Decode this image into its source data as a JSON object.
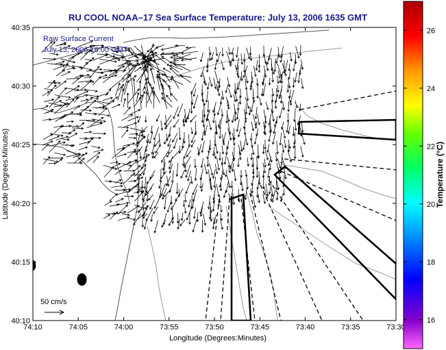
{
  "chart_data": {
    "type": "vector-field-map",
    "title": "RU COOL  NOAA–17  Sea Surface Temperature:  July 13, 2006 1635 GMT",
    "inset_lines": [
      "Raw Surface Current",
      "July 13, 2006 16:00 GMT"
    ],
    "xlabel": "Longitude (Degrees:Minutes)",
    "ylabel": "Latitude (Degrees:Minutes)",
    "x_ticks": [
      "74:10",
      "74:05",
      "74:00",
      "73:55",
      "73:50",
      "73:45",
      "73:40",
      "73:35",
      "73:30"
    ],
    "y_ticks": [
      "40:35",
      "40:30",
      "40:25",
      "40:20",
      "40:15",
      "40:10"
    ],
    "xlim_minutes_west": [
      10,
      30
    ],
    "ylim_minutes_north": [
      10,
      35
    ],
    "colorbar": {
      "label": "Temperature (°C)",
      "ticks": [
        "16",
        "18",
        "20",
        "22",
        "24",
        "26"
      ],
      "range": [
        15,
        27
      ]
    },
    "scale_arrow_label": "50 cm/s",
    "markers": [
      {
        "lon_min_w": 9.9,
        "lat_min_n": 14.7
      },
      {
        "lon_min_w": 12.7,
        "lat_min_n": 13.5
      }
    ],
    "grid": false
  }
}
